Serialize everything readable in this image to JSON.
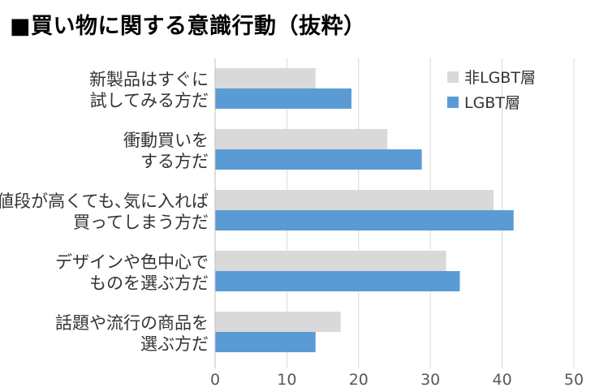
{
  "chart_data": {
    "type": "bar",
    "orientation": "horizontal",
    "title": "■買い物に関する意識行動（抜粋）",
    "categories": [
      [
        "新製品はすぐに",
        "試してみる方だ"
      ],
      [
        "衝動買いを",
        "する方だ"
      ],
      [
        "値段が高くても､気に入れば",
        "買ってしまう方だ"
      ],
      [
        "デザインや色中心で",
        "ものを選ぶ方だ"
      ],
      [
        "話題や流行の商品を",
        "選ぶ方だ"
      ]
    ],
    "series": [
      {
        "name": "非LGBT層",
        "color": "#d9d9d9",
        "values": [
          14.0,
          24.0,
          38.8,
          32.2,
          17.5
        ]
      },
      {
        "name": "LGBT層",
        "color": "#5b9bd5",
        "values": [
          19.0,
          28.8,
          41.6,
          34.1,
          14.0
        ]
      }
    ],
    "xlim": [
      0,
      50
    ],
    "xticks": [
      0,
      10,
      20,
      30,
      40,
      50
    ],
    "grid": true,
    "legend_position": "top-right",
    "xlabel": "",
    "ylabel": ""
  }
}
